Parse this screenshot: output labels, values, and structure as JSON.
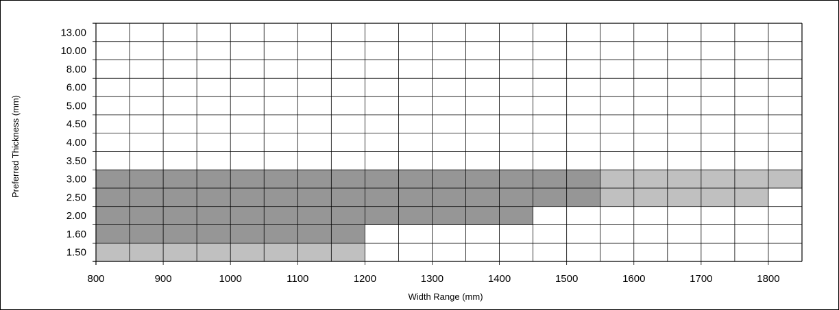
{
  "chart_data": {
    "type": "heatmap",
    "title": "",
    "xlabel": "Width Range (mm)",
    "ylabel": "Preferred Thickness (mm)",
    "x_tick_labels": [
      "800",
      "900",
      "1000",
      "1100",
      "1200",
      "1300",
      "1400",
      "1500",
      "1600",
      "1700",
      "1800"
    ],
    "x_range": [
      800,
      1850
    ],
    "x_step": 50,
    "y_categories": [
      "1.50",
      "1.60",
      "2.00",
      "2.50",
      "3.00",
      "3.50",
      "4.00",
      "4.50",
      "5.00",
      "6.00",
      "8.00",
      "10.00",
      "13.00"
    ],
    "grid": true,
    "colors": {
      "dark": "#969696",
      "light": "#c0c0c0",
      "grid": "#000000",
      "background": "#ffffff"
    },
    "regions": [
      {
        "shade": "light",
        "thickness": "1.50",
        "x_from": 800,
        "x_to": 1200
      },
      {
        "shade": "dark",
        "thickness": "1.60",
        "x_from": 800,
        "x_to": 1200
      },
      {
        "shade": "dark",
        "thickness": "2.00",
        "x_from": 800,
        "x_to": 1450
      },
      {
        "shade": "dark",
        "thickness": "2.50",
        "x_from": 800,
        "x_to": 1550
      },
      {
        "shade": "light",
        "thickness": "2.50",
        "x_from": 1550,
        "x_to": 1800
      },
      {
        "shade": "dark",
        "thickness": "3.00",
        "x_from": 800,
        "x_to": 1550
      },
      {
        "shade": "light",
        "thickness": "3.00",
        "x_from": 1550,
        "x_to": 1850
      }
    ]
  }
}
